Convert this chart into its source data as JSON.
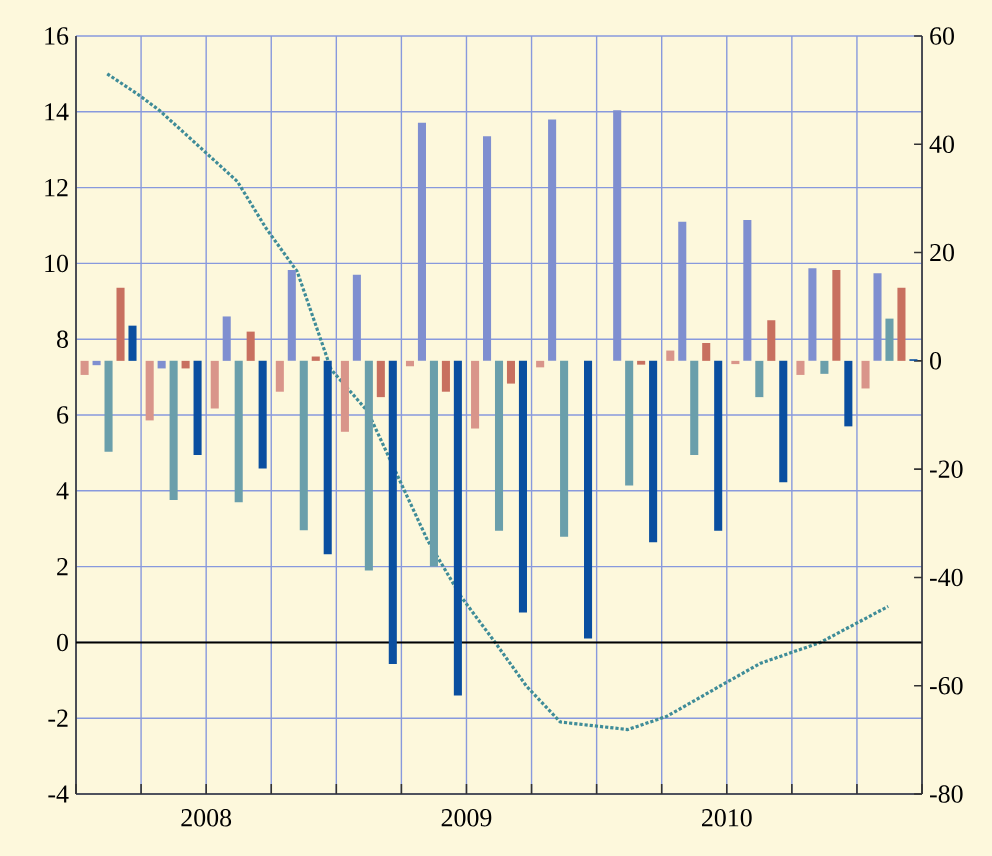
{
  "chart_data": {
    "type": "bar",
    "x": [
      2008.125,
      2008.375,
      2008.625,
      2008.875,
      2009.125,
      2009.375,
      2009.625,
      2009.875,
      2010.125,
      2010.375,
      2010.625,
      2010.875,
      2011.125
    ],
    "series": [
      {
        "color": "#d9958a",
        "axis": "y2",
        "values": [
          -2.6,
          -11.0,
          -8.8,
          -5.7,
          -13.1,
          -1.0,
          -12.5,
          -1.2,
          0,
          1.9,
          -0.6,
          -2.6,
          -5.1
        ]
      },
      {
        "color": "#7f8fd0",
        "axis": "y2",
        "values": [
          -0.8,
          -1.4,
          8.2,
          16.8,
          15.9,
          44,
          41.5,
          44.6,
          46.3,
          25.7,
          26.0,
          17.1,
          16.2
        ]
      },
      {
        "color": "#6a9fab",
        "axis": "y2",
        "values": [
          -16.8,
          -25.7,
          -26.1,
          -31.3,
          -38.7,
          -38.0,
          -31.4,
          -32.5,
          -23.0,
          -17.4,
          -6.7,
          -2.4,
          7.8
        ]
      },
      {
        "color": "#c8705f",
        "axis": "y2",
        "values": [
          13.5,
          -1.4,
          5.4,
          0.8,
          -6.7,
          -5.7,
          -4.2,
          0,
          -0.7,
          3.3,
          7.5,
          16.8,
          13.5
        ]
      },
      {
        "color": "#0a4fa0",
        "axis": "y2",
        "values": [
          6.5,
          -17.4,
          -19.9,
          -35.7,
          -56.0,
          -61.8,
          -46.5,
          -51.3,
          -33.5,
          -31.4,
          -22.4,
          -12.1,
          0.3
        ]
      },
      {
        "type": "line",
        "color": "#3f8c98",
        "line_style": "dotted",
        "marker": "none",
        "x": [
          2008.12,
          2008.24,
          2008.32,
          2008.48,
          2008.62,
          2008.73,
          2008.85,
          2008.98,
          2009.12,
          2009.35,
          2009.48,
          2009.61,
          2009.73,
          2009.86,
          2010.12,
          2010.27,
          2010.5,
          2010.63,
          2010.86,
          2011.12
        ],
        "values": [
          15.0,
          14.45,
          14.04,
          13.04,
          12.16,
          10.93,
          9.78,
          7.2,
          6.1,
          2.7,
          1.2,
          0.0,
          -1.15,
          -2.1,
          -2.3,
          -1.95,
          -1.05,
          -0.55,
          0.0,
          0.95
        ]
      }
    ],
    "xlim": [
      2008,
      2011.25
    ],
    "xticks": [
      {
        "value": 2008,
        "label": null
      },
      {
        "value": 2008.25,
        "label": null
      },
      {
        "value": 2008.5,
        "label": "2008"
      },
      {
        "value": 2008.5,
        "label": null
      },
      {
        "value": 2008.75,
        "label": null
      },
      {
        "value": 2009,
        "label": null
      },
      {
        "value": 2009.25,
        "label": null
      },
      {
        "value": 2009.5,
        "label": "2009"
      },
      {
        "value": 2009.5,
        "label": null
      },
      {
        "value": 2009.75,
        "label": null
      },
      {
        "value": 2010,
        "label": null
      },
      {
        "value": 2010.25,
        "label": null
      },
      {
        "value": 2010.5,
        "label": "2010"
      },
      {
        "value": 2010.5,
        "label": null
      },
      {
        "value": 2010.75,
        "label": null
      },
      {
        "value": 2011,
        "label": null
      },
      {
        "value": 2011.25,
        "label": null
      }
    ],
    "ylim": [
      -4,
      16
    ],
    "yticks": [
      -4,
      -2,
      0,
      2,
      4,
      6,
      8,
      10,
      12,
      14,
      16
    ],
    "y2lim": [
      -80,
      60
    ],
    "y2ticks": [
      -80,
      -60,
      -40,
      -20,
      0,
      20,
      40,
      60
    ],
    "ref_lines": [
      {
        "axis": "y",
        "value": 0,
        "color": "#000000"
      }
    ],
    "grid": true
  }
}
